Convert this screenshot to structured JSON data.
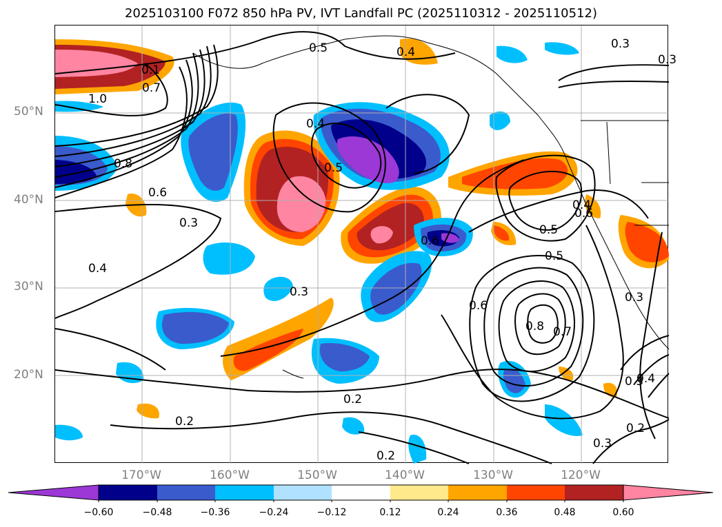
{
  "title": "2025103100 F072 850 hPa PV, IVT Landfall PC (2025110312 - 2025110512)",
  "map": {
    "latitude_labels": [
      "50°N",
      "40°N",
      "30°N",
      "20°N"
    ],
    "longitude_labels": [
      "170°W",
      "160°W",
      "150°W",
      "140°W",
      "130°W",
      "120°W"
    ],
    "contour_labels": [
      "0.5",
      "0.4",
      "0.3",
      "0.1",
      "0.7",
      "1.0",
      "0.8",
      "0.6",
      "0.3",
      "0.4",
      "0.4",
      "0.5",
      "0.3",
      "0.6",
      "0.5",
      "0.4",
      "0.5",
      "0.6",
      "0.8",
      "0.7",
      "0.3",
      "0.2",
      "0.2",
      "0.2",
      "0.3",
      "0.2",
      "0.3",
      "0.4",
      "0.3",
      "0.6"
    ],
    "contour_color": "#000000",
    "grid_color": "#b0b0b0",
    "coastline_color": "#000000"
  },
  "colorbar": {
    "tick_labels": [
      "−0.60",
      "−0.48",
      "−0.36",
      "−0.24",
      "−0.12",
      "0.12",
      "0.24",
      "0.36",
      "0.48",
      "0.60"
    ],
    "colors": [
      "#9b38d6",
      "#00008b",
      "#3a5bcc",
      "#00bfff",
      "#b0e2ff",
      "#ffffff",
      "#ffe98b",
      "#ffa500",
      "#ff4500",
      "#b22222",
      "#ff85a2"
    ]
  }
}
